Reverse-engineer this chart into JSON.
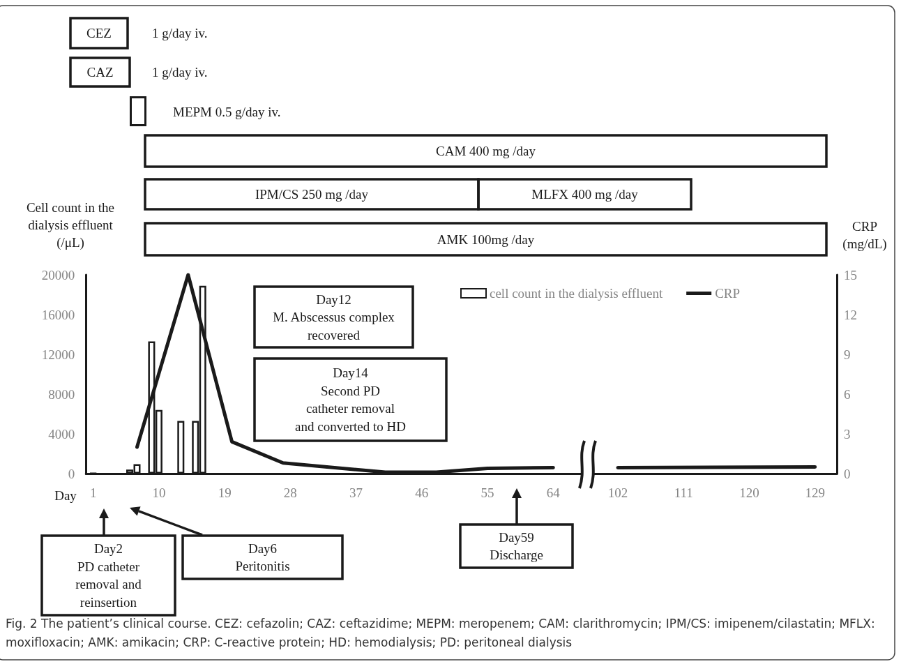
{
  "chart_data": [
    {
      "type": "bar",
      "xlabel": "Day",
      "ylabel": "Cell count in the\ndialysis effluent\n(/μL)",
      "xlim": [
        0,
        68.5
      ],
      "xticks": [
        1,
        10,
        19,
        28,
        37,
        46,
        55,
        64
      ],
      "ylim": [
        0,
        20000
      ],
      "yticks": [
        0,
        4000,
        8000,
        12000,
        16000,
        20000
      ],
      "y2lim": [
        0,
        15
      ],
      "tick_labels": "xy",
      "grid": false,
      "legend": "top right",
      "marker": "none",
      "series": [
        {
          "name": "cell count in the dialysis effluent",
          "color": "#ffffff",
          "colors": [
            "#1a1a1a",
            "#ffffff",
            "#ffffff",
            "#ffffff",
            "#ffffff",
            "#ffffff",
            "#ffffff",
            "#ffffff"
          ],
          "x": [
            1,
            6,
            7,
            9,
            10,
            13,
            15,
            16
          ],
          "values": [
            50,
            400,
            950,
            13300,
            6400,
            5300,
            5300,
            18900
          ]
        },
        {
          "name": "CRP",
          "type": "line",
          "axis": "y2",
          "color": "#1a1a1a",
          "x": [
            7,
            14,
            20,
            27,
            41,
            48,
            55,
            64
          ],
          "values": [
            2.0,
            15,
            2.4,
            0.8,
            0.1,
            0.1,
            0.4,
            0.45
          ]
        }
      ],
      "annotations": [
        "CEZ",
        "1 g/day iv.",
        "CAZ",
        "1 g/day iv.",
        "MEPM 0.5 g/day iv.",
        "CAM 400 mg /day",
        "IPM/CS 250 mg /day",
        "MLFX 400 mg /day",
        "AMK 100mg /day",
        "Day12\nM. Abscessus complex\nrecovered",
        "Day14\nSecond PD\ncatheter removal\nand converted to HD",
        "Day2\nPD catheter\nremoval and\nreinsertion",
        "Day6\nPeritonitis",
        "Day59\nDischarge",
        "Fig. 2 The patient’s clinical course. CEZ: cefazolin; CAZ: ceftazidime; MEPM: meropenem; CAM: clarithromycin; IPM/CS: imipenem/cilastatin; MFLX: moxifloxacin; AMK: amikacin; CRP: C-reactive protein; HD: hemodialysis; PD: peritoneal dialysis"
      ]
    },
    {
      "type": "line",
      "y2label": "CRP\n(mg/dL)",
      "xlim": [
        98,
        132
      ],
      "xticks": [
        102,
        111,
        120,
        129
      ],
      "y2lim": [
        0,
        15
      ],
      "y2ticks": [
        0,
        3,
        6,
        9,
        12,
        15
      ],
      "grid": false,
      "legend": false,
      "marker": "none",
      "series": [
        {
          "axis": "y2",
          "color": "#1a1a1a",
          "x": [
            102,
            129
          ],
          "values": [
            0.45,
            0.5
          ]
        }
      ]
    }
  ]
}
